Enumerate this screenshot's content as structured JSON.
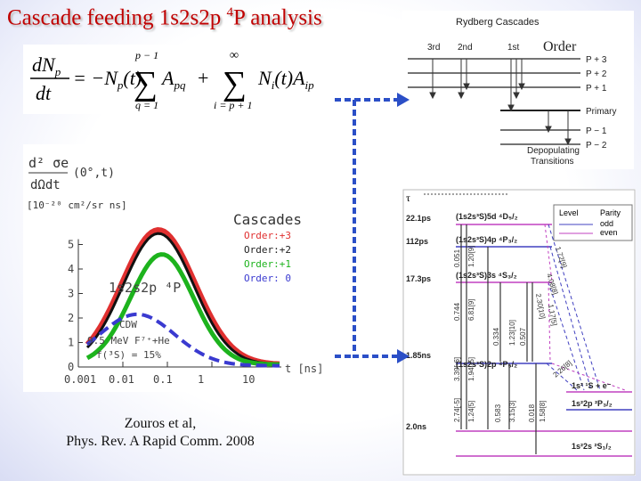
{
  "title": {
    "text": "Cascade feeding 1s2s2p ",
    "sup": "4",
    "tail": "P analysis"
  },
  "order_label": "Order",
  "citation": {
    "line1": "Zouros et al,",
    "line2": "Phys. Rev. A  Rapid Comm. 2008"
  },
  "equation": {
    "lhs_num": "dN",
    "lhs_num_sub": "p",
    "lhs_den": "dt",
    "t1": "= −N",
    "t1_sub": "p",
    "t1_tail": "(t)",
    "sum1_top": "p − 1",
    "sum1_bot": "q = 1",
    "a1": "A",
    "a1_sub": "pq",
    "plus": "+",
    "sum2_top": "∞",
    "sum2_bot": "i = p + 1",
    "t2": "N",
    "t2_sub": "i",
    "t2_tail": "(t)A",
    "a2_sub": "ip"
  },
  "plot": {
    "ylabel_num": "d² σe",
    "ylabel_arg": "(0°,t)",
    "ylabel_den": "dΩdt",
    "ylabel_units": "[10⁻²⁰  cm²/sr ns]",
    "cascades_title": "Cascades",
    "legend": [
      {
        "label": "Order:+3",
        "color": "#e03030"
      },
      {
        "label": "Order:+2",
        "color": "#222222"
      },
      {
        "label": "Order:+1",
        "color": "#1db31d"
      },
      {
        "label": "Order: 0",
        "color": "#3a3ad0"
      }
    ],
    "state_label": "1s2s2p ⁴P",
    "cdw_label": "CDW",
    "beam_label": "9.5 MeV F⁷⁺+He",
    "fraction_label": "f(³S) = 15%",
    "y_ticks": [
      "0",
      "1",
      "2",
      "3",
      "4",
      "5"
    ],
    "x_ticks": [
      "0.001",
      "0.01",
      "0.1",
      "1",
      "10"
    ],
    "x_unit": "t  [ns]"
  },
  "rydberg": {
    "title": "Rydberg  Cascades",
    "cols": [
      "3rd",
      "2nd",
      "1st"
    ],
    "levels": [
      "P + 3",
      "P + 2",
      "P + 1",
      "Primary",
      "P − 1",
      "P − 2"
    ],
    "caption1": "Depopulating",
    "caption2": "Transitions"
  },
  "levels": {
    "tau_label": "τ",
    "legend_title": "Level",
    "legend_parity": "Parity",
    "legend_odd": "odd",
    "legend_even": "even",
    "lifetimes": [
      "22.1ps",
      "112ps",
      "17.3ps",
      "1.85ns",
      "2.0ns"
    ],
    "states": [
      "(1s2s³S)5d ⁴D₅/₂",
      "(1s2s³S)4p ⁴P₃/₂",
      "(1s2s³S)3s ⁴S₃/₂",
      "(1s2s³S)2p ⁴P₅/₂",
      "1s² ¹S + e⁻",
      "1s²2p ²P₃/₂",
      "1s²2s ²S₁/₂"
    ],
    "rates_a": [
      "0.051",
      "0.744",
      "3.39[-6]",
      "2.74[-5]"
    ],
    "rates_b": [
      "1.20[9]",
      "6.81[9]",
      "1.94[-5]",
      "1.24[5]"
    ],
    "rates_c": [
      "0.334",
      "1.23[10]",
      "0.583",
      "3.15[3]"
    ],
    "rates_d": [
      "0.507",
      "0.018",
      "1.58[8]"
    ],
    "rates_diag": [
      "1.72[9]",
      "4.08[8]",
      "2.30[10]",
      "1.17[5]",
      "2.26[8]"
    ]
  }
}
